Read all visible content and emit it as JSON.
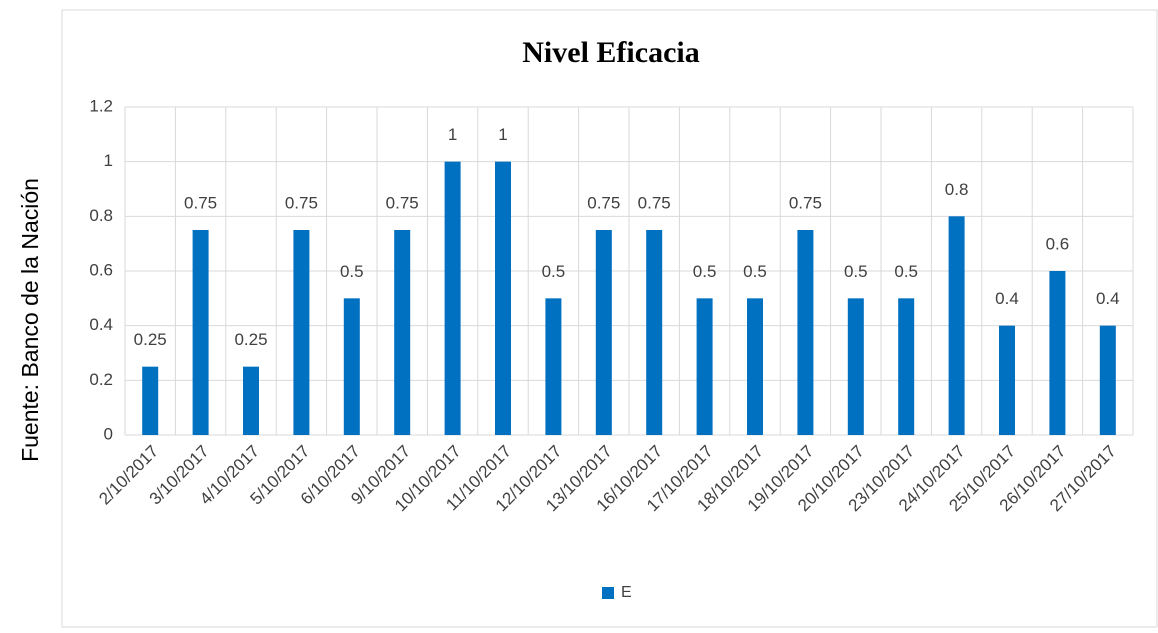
{
  "source_note": "Fuente: Banco de la Nación",
  "chart_data": {
    "type": "bar",
    "title": "Nivel Eficacia",
    "categories": [
      "2/10/2017",
      "3/10/2017",
      "4/10/2017",
      "5/10/2017",
      "6/10/2017",
      "9/10/2017",
      "10/10/2017",
      "11/10/2017",
      "12/10/2017",
      "13/10/2017",
      "16/10/2017",
      "17/10/2017",
      "18/10/2017",
      "19/10/2017",
      "20/10/2017",
      "23/10/2017",
      "24/10/2017",
      "25/10/2017",
      "26/10/2017",
      "27/10/2017"
    ],
    "series": [
      {
        "name": "E",
        "color": "#0070c0",
        "values": [
          0.25,
          0.75,
          0.25,
          0.75,
          0.5,
          0.75,
          1,
          1,
          0.5,
          0.75,
          0.75,
          0.5,
          0.5,
          0.75,
          0.5,
          0.5,
          0.8,
          0.4,
          0.6,
          0.4
        ]
      }
    ],
    "ylim": [
      0,
      1.2
    ],
    "yticks": [
      0,
      0.2,
      0.4,
      0.6,
      0.8,
      1,
      1.2
    ],
    "grid": true,
    "legend": "bottom",
    "data_labels": true
  }
}
